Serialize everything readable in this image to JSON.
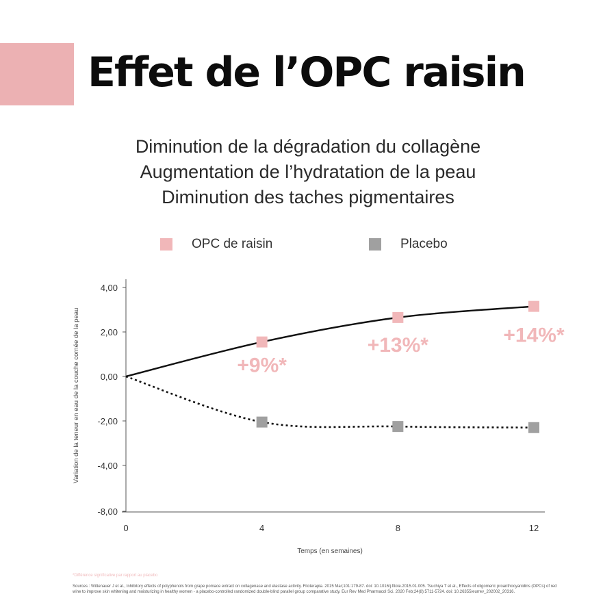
{
  "title": "Effet de l’OPC raisin",
  "subtitles": [
    "Diminution de la dégradation du collagène",
    "Augmentation de l’hydratation de la peau",
    "Diminution des taches pigmentaires"
  ],
  "colors": {
    "accent": "#ecb1b3",
    "opc": "#f1b7b9",
    "placebo": "#a0a0a0",
    "line": "#111111"
  },
  "chart_data": {
    "type": "line",
    "x": [
      0,
      4,
      8,
      12
    ],
    "xlabel": "Temps (en semaines)",
    "ylabel": "Variation de la teneur en eau de la couche cornée de la peau",
    "ylim": [
      -8,
      4.5
    ],
    "yticks": [
      4,
      2,
      0,
      -2,
      -4,
      -8
    ],
    "ytick_labels": [
      "4,00",
      "2,00",
      "0,00",
      "-2,00",
      "-4,00",
      "-8,00"
    ],
    "xtick_labels": [
      "0",
      "4",
      "8",
      "12"
    ],
    "legend_position": "top",
    "series": [
      {
        "name": "OPC de raisin",
        "values": [
          0,
          1.55,
          2.65,
          3.15
        ],
        "style": "solid",
        "marker_color": "#f1b7b9"
      },
      {
        "name": "Placebo",
        "values": [
          0,
          -2.05,
          -2.25,
          -2.3
        ],
        "style": "dotted",
        "marker_color": "#a0a0a0"
      }
    ],
    "annotations": [
      "+9%*",
      "+13%*",
      "+14%*"
    ]
  },
  "footnote": "*Différence significative par rapport au placebo",
  "sources": "Sources : Wittenauer J et al., Inhibitory effects of polyphenols from grape pomace extract on collagenase and elastase activity. Fitoterapia. 2015 Mar;101:179-87. doi: 10.1016/j.fitote.2015.01.005. Tsuchiya T et al., Effects of oligomeric proanthocyanidins (OPCs) of red wine to improve skin whitening and moisturizing in healthy women - a placebo-controlled randomized double-blind parallel group comparative study. Eur Rev Med Pharmacol Sci. 2020 Feb;24(8):5711-5724. doi: 10.26355/eurrev_202002_20316."
}
